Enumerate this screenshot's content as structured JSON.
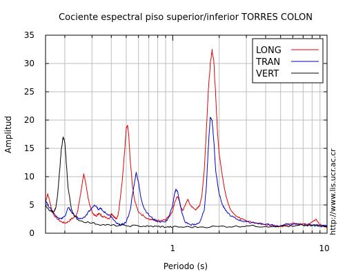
{
  "chart_data": {
    "type": "line",
    "title": "Cociente espectral piso superior/inferior  TORRES COLON",
    "xlabel": "Periodo (s)",
    "ylabel": "Amplitud",
    "xscale": "log",
    "xlim": [
      0.15,
      10
    ],
    "ylim": [
      0,
      35
    ],
    "xticks": [
      {
        "value": 1,
        "label": "1"
      },
      {
        "value": 10,
        "label": "10"
      }
    ],
    "yticks": [
      0,
      5,
      10,
      15,
      20,
      25,
      30,
      35
    ],
    "grid": true,
    "legend": "top-right",
    "credit": "http://www.lis.ucr.ac.cr",
    "series": [
      {
        "name": "LONG",
        "color": "#e00000",
        "points": [
          [
            0.15,
            5.5
          ],
          [
            0.155,
            7
          ],
          [
            0.16,
            5.5
          ],
          [
            0.165,
            4
          ],
          [
            0.17,
            3.2
          ],
          [
            0.18,
            2.5
          ],
          [
            0.19,
            2
          ],
          [
            0.2,
            1.8
          ],
          [
            0.21,
            2
          ],
          [
            0.22,
            2.5
          ],
          [
            0.23,
            2.8
          ],
          [
            0.24,
            3.5
          ],
          [
            0.25,
            6
          ],
          [
            0.26,
            9
          ],
          [
            0.265,
            10.5
          ],
          [
            0.27,
            9.5
          ],
          [
            0.28,
            7
          ],
          [
            0.29,
            5
          ],
          [
            0.3,
            3.8
          ],
          [
            0.31,
            3.2
          ],
          [
            0.32,
            3
          ],
          [
            0.33,
            3.5
          ],
          [
            0.34,
            3.3
          ],
          [
            0.35,
            3
          ],
          [
            0.37,
            2.8
          ],
          [
            0.39,
            2.6
          ],
          [
            0.4,
            3.5
          ],
          [
            0.41,
            3.2
          ],
          [
            0.42,
            2.8
          ],
          [
            0.43,
            2.5
          ],
          [
            0.44,
            3
          ],
          [
            0.45,
            4.5
          ],
          [
            0.47,
            9
          ],
          [
            0.49,
            15
          ],
          [
            0.5,
            18.5
          ],
          [
            0.51,
            19
          ],
          [
            0.52,
            17
          ],
          [
            0.53,
            13
          ],
          [
            0.55,
            8
          ],
          [
            0.57,
            5.5
          ],
          [
            0.6,
            3.8
          ],
          [
            0.65,
            3
          ],
          [
            0.7,
            2.5
          ],
          [
            0.75,
            2.3
          ],
          [
            0.8,
            2.2
          ],
          [
            0.85,
            2.3
          ],
          [
            0.9,
            2.5
          ],
          [
            0.95,
            3
          ],
          [
            1.0,
            4
          ],
          [
            1.03,
            5.5
          ],
          [
            1.07,
            6.5
          ],
          [
            1.1,
            5.8
          ],
          [
            1.13,
            4.5
          ],
          [
            1.16,
            4
          ],
          [
            1.2,
            4.8
          ],
          [
            1.25,
            6
          ],
          [
            1.3,
            5
          ],
          [
            1.35,
            4.5
          ],
          [
            1.4,
            4.2
          ],
          [
            1.45,
            4.4
          ],
          [
            1.5,
            5
          ],
          [
            1.55,
            7
          ],
          [
            1.6,
            11
          ],
          [
            1.65,
            18
          ],
          [
            1.7,
            25
          ],
          [
            1.75,
            30
          ],
          [
            1.8,
            32.5
          ],
          [
            1.85,
            30
          ],
          [
            1.9,
            24
          ],
          [
            1.95,
            18
          ],
          [
            2.0,
            14
          ],
          [
            2.1,
            10
          ],
          [
            2.2,
            7
          ],
          [
            2.3,
            5
          ],
          [
            2.4,
            4
          ],
          [
            2.6,
            3
          ],
          [
            2.8,
            2.5
          ],
          [
            3.0,
            2.2
          ],
          [
            3.5,
            1.8
          ],
          [
            4.0,
            1.5
          ],
          [
            4.5,
            1.3
          ],
          [
            5.0,
            1.2
          ],
          [
            5.5,
            1.5
          ],
          [
            6.0,
            1.8
          ],
          [
            6.5,
            1.5
          ],
          [
            7.0,
            1.7
          ],
          [
            7.5,
            1.4
          ],
          [
            8.0,
            2
          ],
          [
            8.5,
            2.5
          ],
          [
            9.0,
            1.5
          ],
          [
            9.5,
            1.2
          ],
          [
            10,
            1
          ]
        ]
      },
      {
        "name": "TRAN",
        "color": "#0000c8",
        "points": [
          [
            0.15,
            6
          ],
          [
            0.155,
            5
          ],
          [
            0.16,
            4.5
          ],
          [
            0.17,
            3.5
          ],
          [
            0.18,
            2.8
          ],
          [
            0.19,
            2.5
          ],
          [
            0.2,
            3
          ],
          [
            0.21,
            4.5
          ],
          [
            0.215,
            4.3
          ],
          [
            0.22,
            3.8
          ],
          [
            0.23,
            3.2
          ],
          [
            0.24,
            2.8
          ],
          [
            0.25,
            2.5
          ],
          [
            0.27,
            2.8
          ],
          [
            0.28,
            3.5
          ],
          [
            0.3,
            4.5
          ],
          [
            0.31,
            5
          ],
          [
            0.32,
            4.8
          ],
          [
            0.33,
            4.2
          ],
          [
            0.34,
            4.5
          ],
          [
            0.35,
            4
          ],
          [
            0.37,
            3.5
          ],
          [
            0.39,
            3.2
          ],
          [
            0.41,
            2.5
          ],
          [
            0.43,
            1.8
          ],
          [
            0.45,
            1.5
          ],
          [
            0.47,
            1.5
          ],
          [
            0.5,
            2
          ],
          [
            0.53,
            4
          ],
          [
            0.55,
            7
          ],
          [
            0.57,
            9.5
          ],
          [
            0.58,
            10.8
          ],
          [
            0.6,
            9
          ],
          [
            0.62,
            6.5
          ],
          [
            0.65,
            4.5
          ],
          [
            0.7,
            3.2
          ],
          [
            0.75,
            2.5
          ],
          [
            0.8,
            2.1
          ],
          [
            0.9,
            2
          ],
          [
            0.95,
            3
          ],
          [
            1.0,
            5
          ],
          [
            1.03,
            7
          ],
          [
            1.05,
            7.8
          ],
          [
            1.08,
            7.2
          ],
          [
            1.1,
            6
          ],
          [
            1.15,
            3.5
          ],
          [
            1.2,
            2
          ],
          [
            1.3,
            1.5
          ],
          [
            1.4,
            1.5
          ],
          [
            1.5,
            2
          ],
          [
            1.6,
            4
          ],
          [
            1.65,
            8
          ],
          [
            1.7,
            15
          ],
          [
            1.75,
            20.5
          ],
          [
            1.8,
            20
          ],
          [
            1.85,
            16
          ],
          [
            1.9,
            11
          ],
          [
            2.0,
            7
          ],
          [
            2.1,
            5
          ],
          [
            2.2,
            4
          ],
          [
            2.4,
            3
          ],
          [
            2.6,
            2.5
          ],
          [
            2.8,
            2.2
          ],
          [
            3.0,
            2
          ],
          [
            3.5,
            1.8
          ],
          [
            4.0,
            1.6
          ],
          [
            4.5,
            1.4
          ],
          [
            5.0,
            1.3
          ],
          [
            5.5,
            1.6
          ],
          [
            6.0,
            1.5
          ],
          [
            6.5,
            1.7
          ],
          [
            7.0,
            1.4
          ],
          [
            7.5,
            1.6
          ],
          [
            8.0,
            1.3
          ],
          [
            8.5,
            1.5
          ],
          [
            9.0,
            1.2
          ],
          [
            9.5,
            1.4
          ],
          [
            10,
            1.2
          ]
        ]
      },
      {
        "name": "VERT",
        "color": "#000000",
        "points": [
          [
            0.15,
            5
          ],
          [
            0.16,
            4
          ],
          [
            0.17,
            3.8
          ],
          [
            0.175,
            4.5
          ],
          [
            0.18,
            7
          ],
          [
            0.185,
            11
          ],
          [
            0.19,
            15
          ],
          [
            0.195,
            17
          ],
          [
            0.2,
            16
          ],
          [
            0.205,
            12
          ],
          [
            0.21,
            8
          ],
          [
            0.22,
            4.5
          ],
          [
            0.23,
            3
          ],
          [
            0.25,
            2.2
          ],
          [
            0.3,
            1.8
          ],
          [
            0.35,
            1.5
          ],
          [
            0.4,
            1.4
          ],
          [
            0.5,
            1.3
          ],
          [
            0.6,
            1.3
          ],
          [
            0.7,
            1.2
          ],
          [
            0.8,
            1.2
          ],
          [
            0.9,
            1.1
          ],
          [
            1.0,
            1.1
          ],
          [
            1.2,
            1.1
          ],
          [
            1.5,
            1.1
          ],
          [
            2.0,
            1.2
          ],
          [
            2.5,
            1.2
          ],
          [
            3.0,
            1.3
          ],
          [
            4.0,
            1.2
          ],
          [
            5.0,
            1.3
          ],
          [
            6.0,
            1.2
          ],
          [
            7.0,
            1.4
          ],
          [
            8.0,
            1.3
          ],
          [
            9.0,
            1.3
          ],
          [
            10,
            1.3
          ]
        ]
      }
    ]
  }
}
